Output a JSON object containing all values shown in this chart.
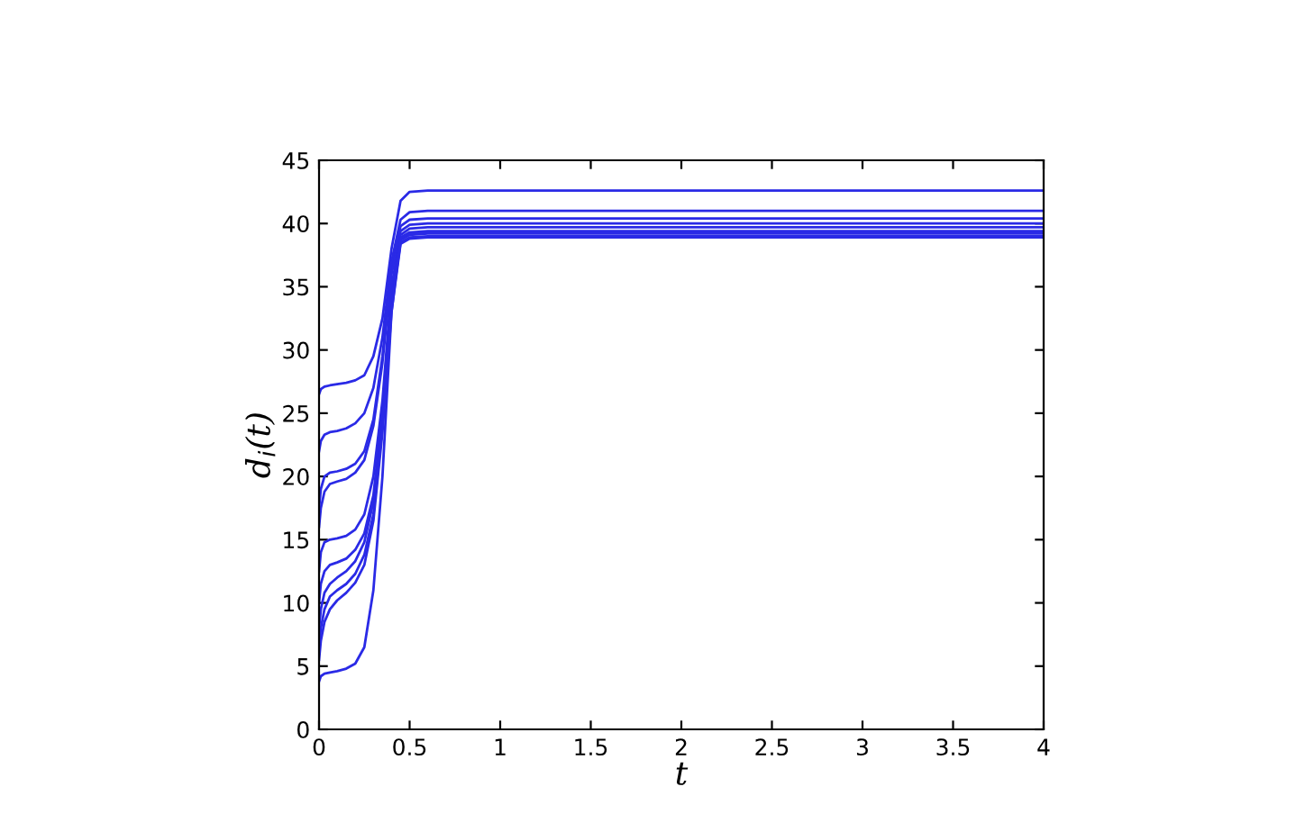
{
  "chart_data": {
    "type": "line",
    "xlabel": "t",
    "ylabel": "d$_{i}$(t)",
    "xlim": [
      0,
      4
    ],
    "ylim": [
      0,
      45
    ],
    "xticks": [
      0,
      0.5,
      1,
      1.5,
      2,
      2.5,
      3,
      3.5,
      4
    ],
    "yticks": [
      0,
      5,
      10,
      15,
      20,
      25,
      30,
      35,
      40,
      45
    ],
    "grid": false,
    "legend": false,
    "marker": "none",
    "line_style": "solid",
    "x": [
      0,
      0.01,
      0.03,
      0.06,
      0.1,
      0.15,
      0.2,
      0.25,
      0.3,
      0.35,
      0.4,
      0.45,
      0.5,
      0.6,
      1,
      4
    ],
    "series": [
      {
        "color": "#2a2ae6",
        "values": [
          26.5,
          26.9,
          27.1,
          27.2,
          27.3,
          27.4,
          27.6,
          28.0,
          29.5,
          32.5,
          38.0,
          41.8,
          42.5,
          42.6,
          42.6,
          42.6
        ]
      },
      {
        "color": "#2a2ae6",
        "values": [
          22.0,
          22.8,
          23.3,
          23.5,
          23.6,
          23.8,
          24.2,
          25.0,
          27.0,
          31.0,
          37.0,
          40.3,
          40.9,
          41.0,
          41.0,
          41.0
        ]
      },
      {
        "color": "#2a2ae6",
        "values": [
          17.5,
          19.0,
          20.0,
          20.3,
          20.4,
          20.6,
          21.0,
          22.0,
          24.5,
          29.5,
          36.5,
          39.8,
          40.3,
          40.4,
          40.4,
          40.4
        ]
      },
      {
        "color": "#2a2ae6",
        "values": [
          16.0,
          17.5,
          18.8,
          19.4,
          19.6,
          19.8,
          20.3,
          21.3,
          24.0,
          29.0,
          36.0,
          39.4,
          39.9,
          40.0,
          40.0,
          40.0
        ]
      },
      {
        "color": "#2a2ae6",
        "values": [
          12.5,
          14.0,
          14.8,
          15.0,
          15.1,
          15.3,
          15.8,
          17.0,
          20.0,
          26.0,
          35.0,
          39.1,
          39.6,
          39.7,
          39.7,
          39.7
        ]
      },
      {
        "color": "#2a2ae6",
        "values": [
          10.0,
          11.5,
          12.5,
          13.0,
          13.2,
          13.5,
          14.2,
          15.5,
          18.5,
          25.0,
          34.5,
          38.9,
          39.3,
          39.4,
          39.4,
          39.4
        ]
      },
      {
        "color": "#2a2ae6",
        "values": [
          8.0,
          9.5,
          10.8,
          11.5,
          12.0,
          12.5,
          13.3,
          14.8,
          18.0,
          24.5,
          34.0,
          38.7,
          39.1,
          39.2,
          39.2,
          39.2
        ]
      },
      {
        "color": "#2a2ae6",
        "values": [
          6.5,
          8.0,
          9.5,
          10.5,
          11.0,
          11.5,
          12.3,
          13.8,
          17.0,
          24.0,
          33.5,
          38.5,
          38.9,
          39.0,
          39.0,
          39.0
        ]
      },
      {
        "color": "#2a2ae6",
        "values": [
          5.5,
          7.0,
          8.5,
          9.5,
          10.2,
          10.8,
          11.6,
          13.0,
          16.5,
          23.5,
          33.0,
          38.4,
          38.8,
          38.9,
          38.9,
          38.9
        ]
      },
      {
        "color": "#2a2ae6",
        "values": [
          3.8,
          4.2,
          4.4,
          4.5,
          4.6,
          4.8,
          5.2,
          6.5,
          11.0,
          20.0,
          33.0,
          38.8,
          39.2,
          39.3,
          39.3,
          39.3
        ]
      }
    ]
  }
}
